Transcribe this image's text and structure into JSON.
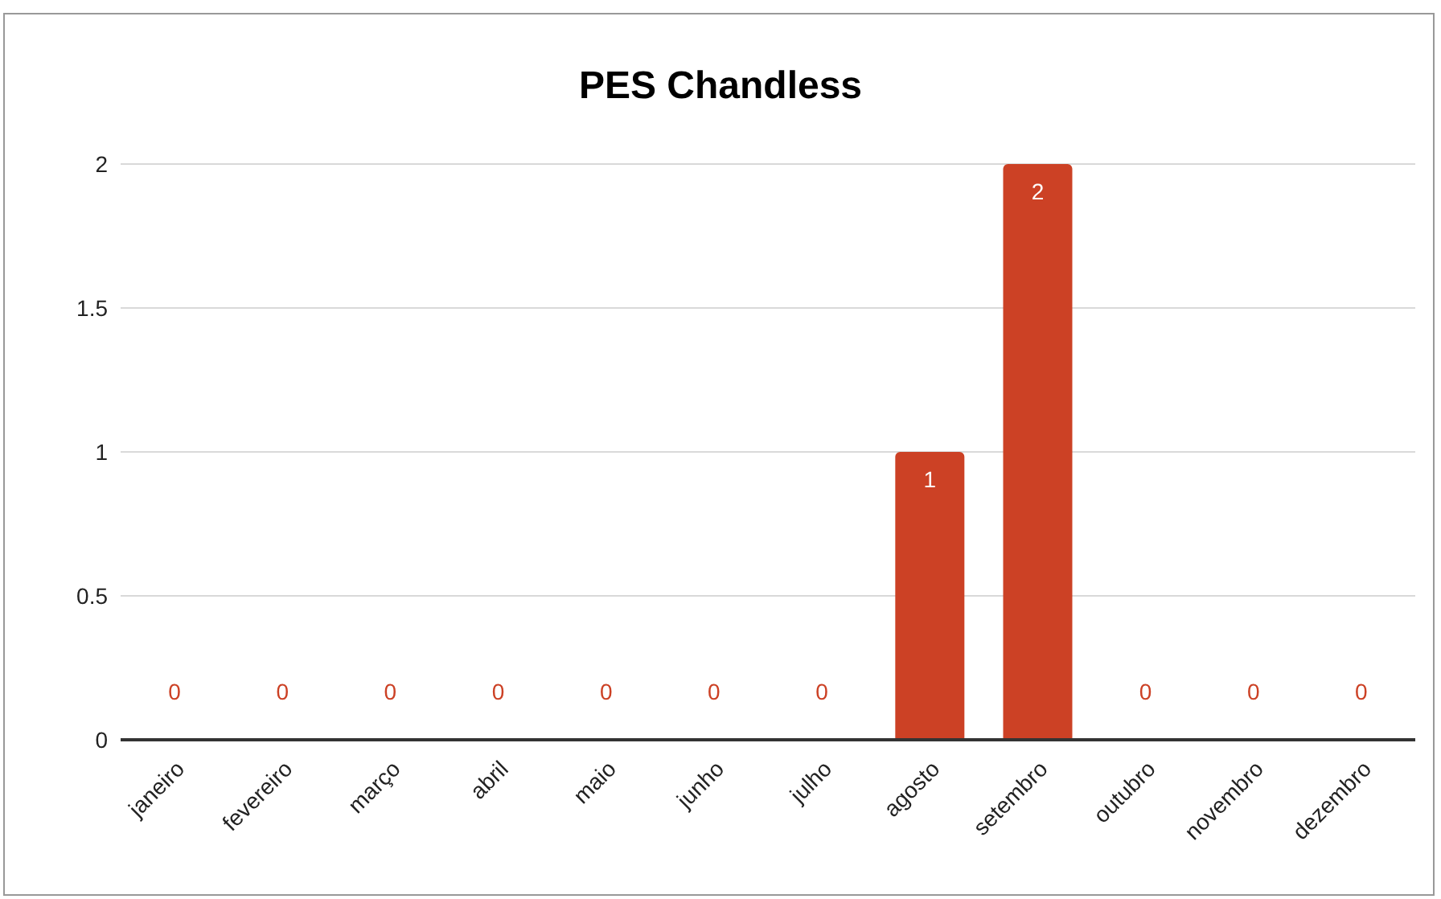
{
  "chart_data": {
    "type": "bar",
    "title": "PES Chandless",
    "categories": [
      "janeiro",
      "fevereiro",
      "março",
      "abril",
      "maio",
      "junho",
      "julho",
      "agosto",
      "setembro",
      "outubro",
      "novembro",
      "dezembro"
    ],
    "values": [
      0,
      0,
      0,
      0,
      0,
      0,
      0,
      1,
      2,
      0,
      0,
      0
    ],
    "color": "#cc4125",
    "ylim": [
      0,
      2
    ],
    "yticks": [
      0,
      0.5,
      1,
      1.5,
      2
    ],
    "grid": "y",
    "data_labels": true,
    "legend": false
  }
}
